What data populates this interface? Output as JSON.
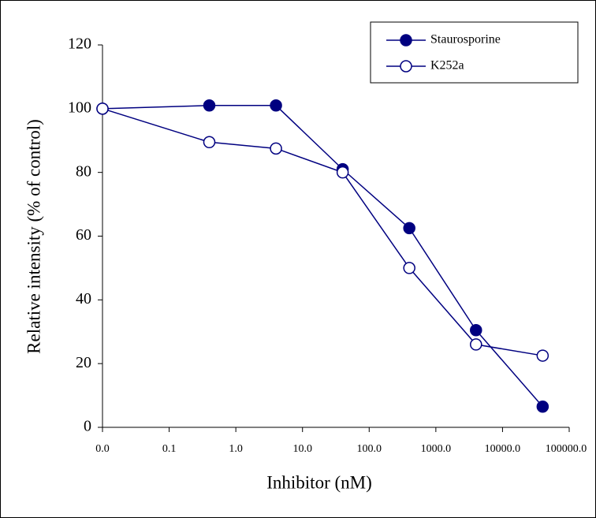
{
  "chart_data": {
    "type": "line",
    "x_label": "Inhibitor (nM)",
    "y_label": "Relative intensity (% of control)",
    "x": [
      0.01,
      0.4,
      4,
      40,
      400,
      4000,
      40000
    ],
    "series": [
      {
        "name": "Staurosporine",
        "color": "#000080",
        "marker": "filled",
        "values": [
          100,
          101,
          101,
          81,
          62.5,
          30.5,
          6.5
        ]
      },
      {
        "name": "K252a",
        "color": "#000080",
        "marker": "open",
        "values": [
          100,
          89.5,
          87.5,
          80,
          50,
          26,
          22.5
        ]
      }
    ],
    "xscale": "log",
    "xlim": [
      0.01,
      100000
    ],
    "xticks": [
      {
        "value": 0.01,
        "label": "0.0"
      },
      {
        "value": 0.1,
        "label": "0.1"
      },
      {
        "value": 1,
        "label": "1.0"
      },
      {
        "value": 10,
        "label": "10.0"
      },
      {
        "value": 100,
        "label": "100.0"
      },
      {
        "value": 1000,
        "label": "1000.0"
      },
      {
        "value": 10000,
        "label": "10000.0"
      },
      {
        "value": 100000,
        "label": "100000.0"
      }
    ],
    "ylim": [
      0,
      120
    ],
    "yticks": [
      0,
      20,
      40,
      60,
      80,
      100,
      120
    ],
    "legend": "upper right"
  }
}
